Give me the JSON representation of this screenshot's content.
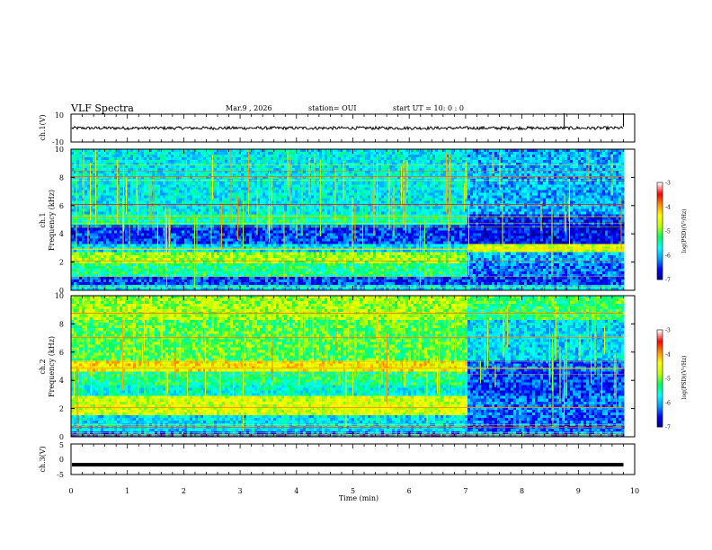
{
  "header": {
    "title": "VLF Spectra",
    "date": "Mar.9  , 2026",
    "station": "station= OUI",
    "start": "start  UT  =   10: 0  : 0"
  },
  "chart_data": [
    {
      "type": "line",
      "name": "ch1-waveform",
      "ylabel": "ch.1(V)",
      "ylim": [
        -10,
        10
      ],
      "yticks": [
        "10",
        "-10"
      ],
      "xlim": [
        0,
        10
      ],
      "baseline": 0,
      "spikes_min": [
        8.75,
        9.8
      ]
    },
    {
      "type": "heatmap",
      "name": "ch1-spectrogram",
      "ylabel_1": "ch.1",
      "ylabel_2": "Frequency  (kHz)",
      "ylim": [
        0,
        10
      ],
      "yticks": [
        "0",
        "2",
        "4",
        "6",
        "8",
        "10"
      ],
      "xlim": [
        0,
        10
      ],
      "data_end_min": 9.8,
      "colorbar": {
        "label": "log(PSD)(V²/Hz)",
        "range": [
          -7,
          -3
        ],
        "ticks": [
          "-3",
          "-4",
          "-5",
          "-6",
          "-7"
        ]
      },
      "regime_change_min": 7.0
    },
    {
      "type": "heatmap",
      "name": "ch2-spectrogram",
      "ylabel_1": "ch.2",
      "ylabel_2": "Frequency  (kHz)",
      "ylim": [
        0,
        10
      ],
      "yticks": [
        "0",
        "2",
        "4",
        "6",
        "8",
        "10"
      ],
      "xlim": [
        0,
        10
      ],
      "data_end_min": 9.8,
      "colorbar": {
        "label": "log(PSD)(V²/Hz)",
        "range": [
          -7,
          -3
        ],
        "ticks": [
          "-3",
          "-4",
          "-5",
          "-6",
          "-7"
        ]
      },
      "regime_change_min": 7.0
    },
    {
      "type": "line",
      "name": "ch3-waveform",
      "ylabel": "ch.3(V)",
      "ylim": [
        -5,
        5
      ],
      "yticks": [
        "5",
        "0",
        "-5"
      ],
      "xlim": [
        0,
        10
      ],
      "level": -1.8
    }
  ],
  "xaxis": {
    "label": "Time  (min)",
    "ticks": [
      "0",
      "1",
      "2",
      "3",
      "4",
      "5",
      "6",
      "7",
      "8",
      "9",
      "10"
    ]
  },
  "colors": {
    "background": "#ffffff",
    "line": "#000000",
    "colormap": [
      "#00008b",
      "#0000ff",
      "#00a0ff",
      "#00ffff",
      "#00ff60",
      "#c0ff00",
      "#ffff00",
      "#ff9000",
      "#ff0000",
      "#ffffff"
    ]
  }
}
